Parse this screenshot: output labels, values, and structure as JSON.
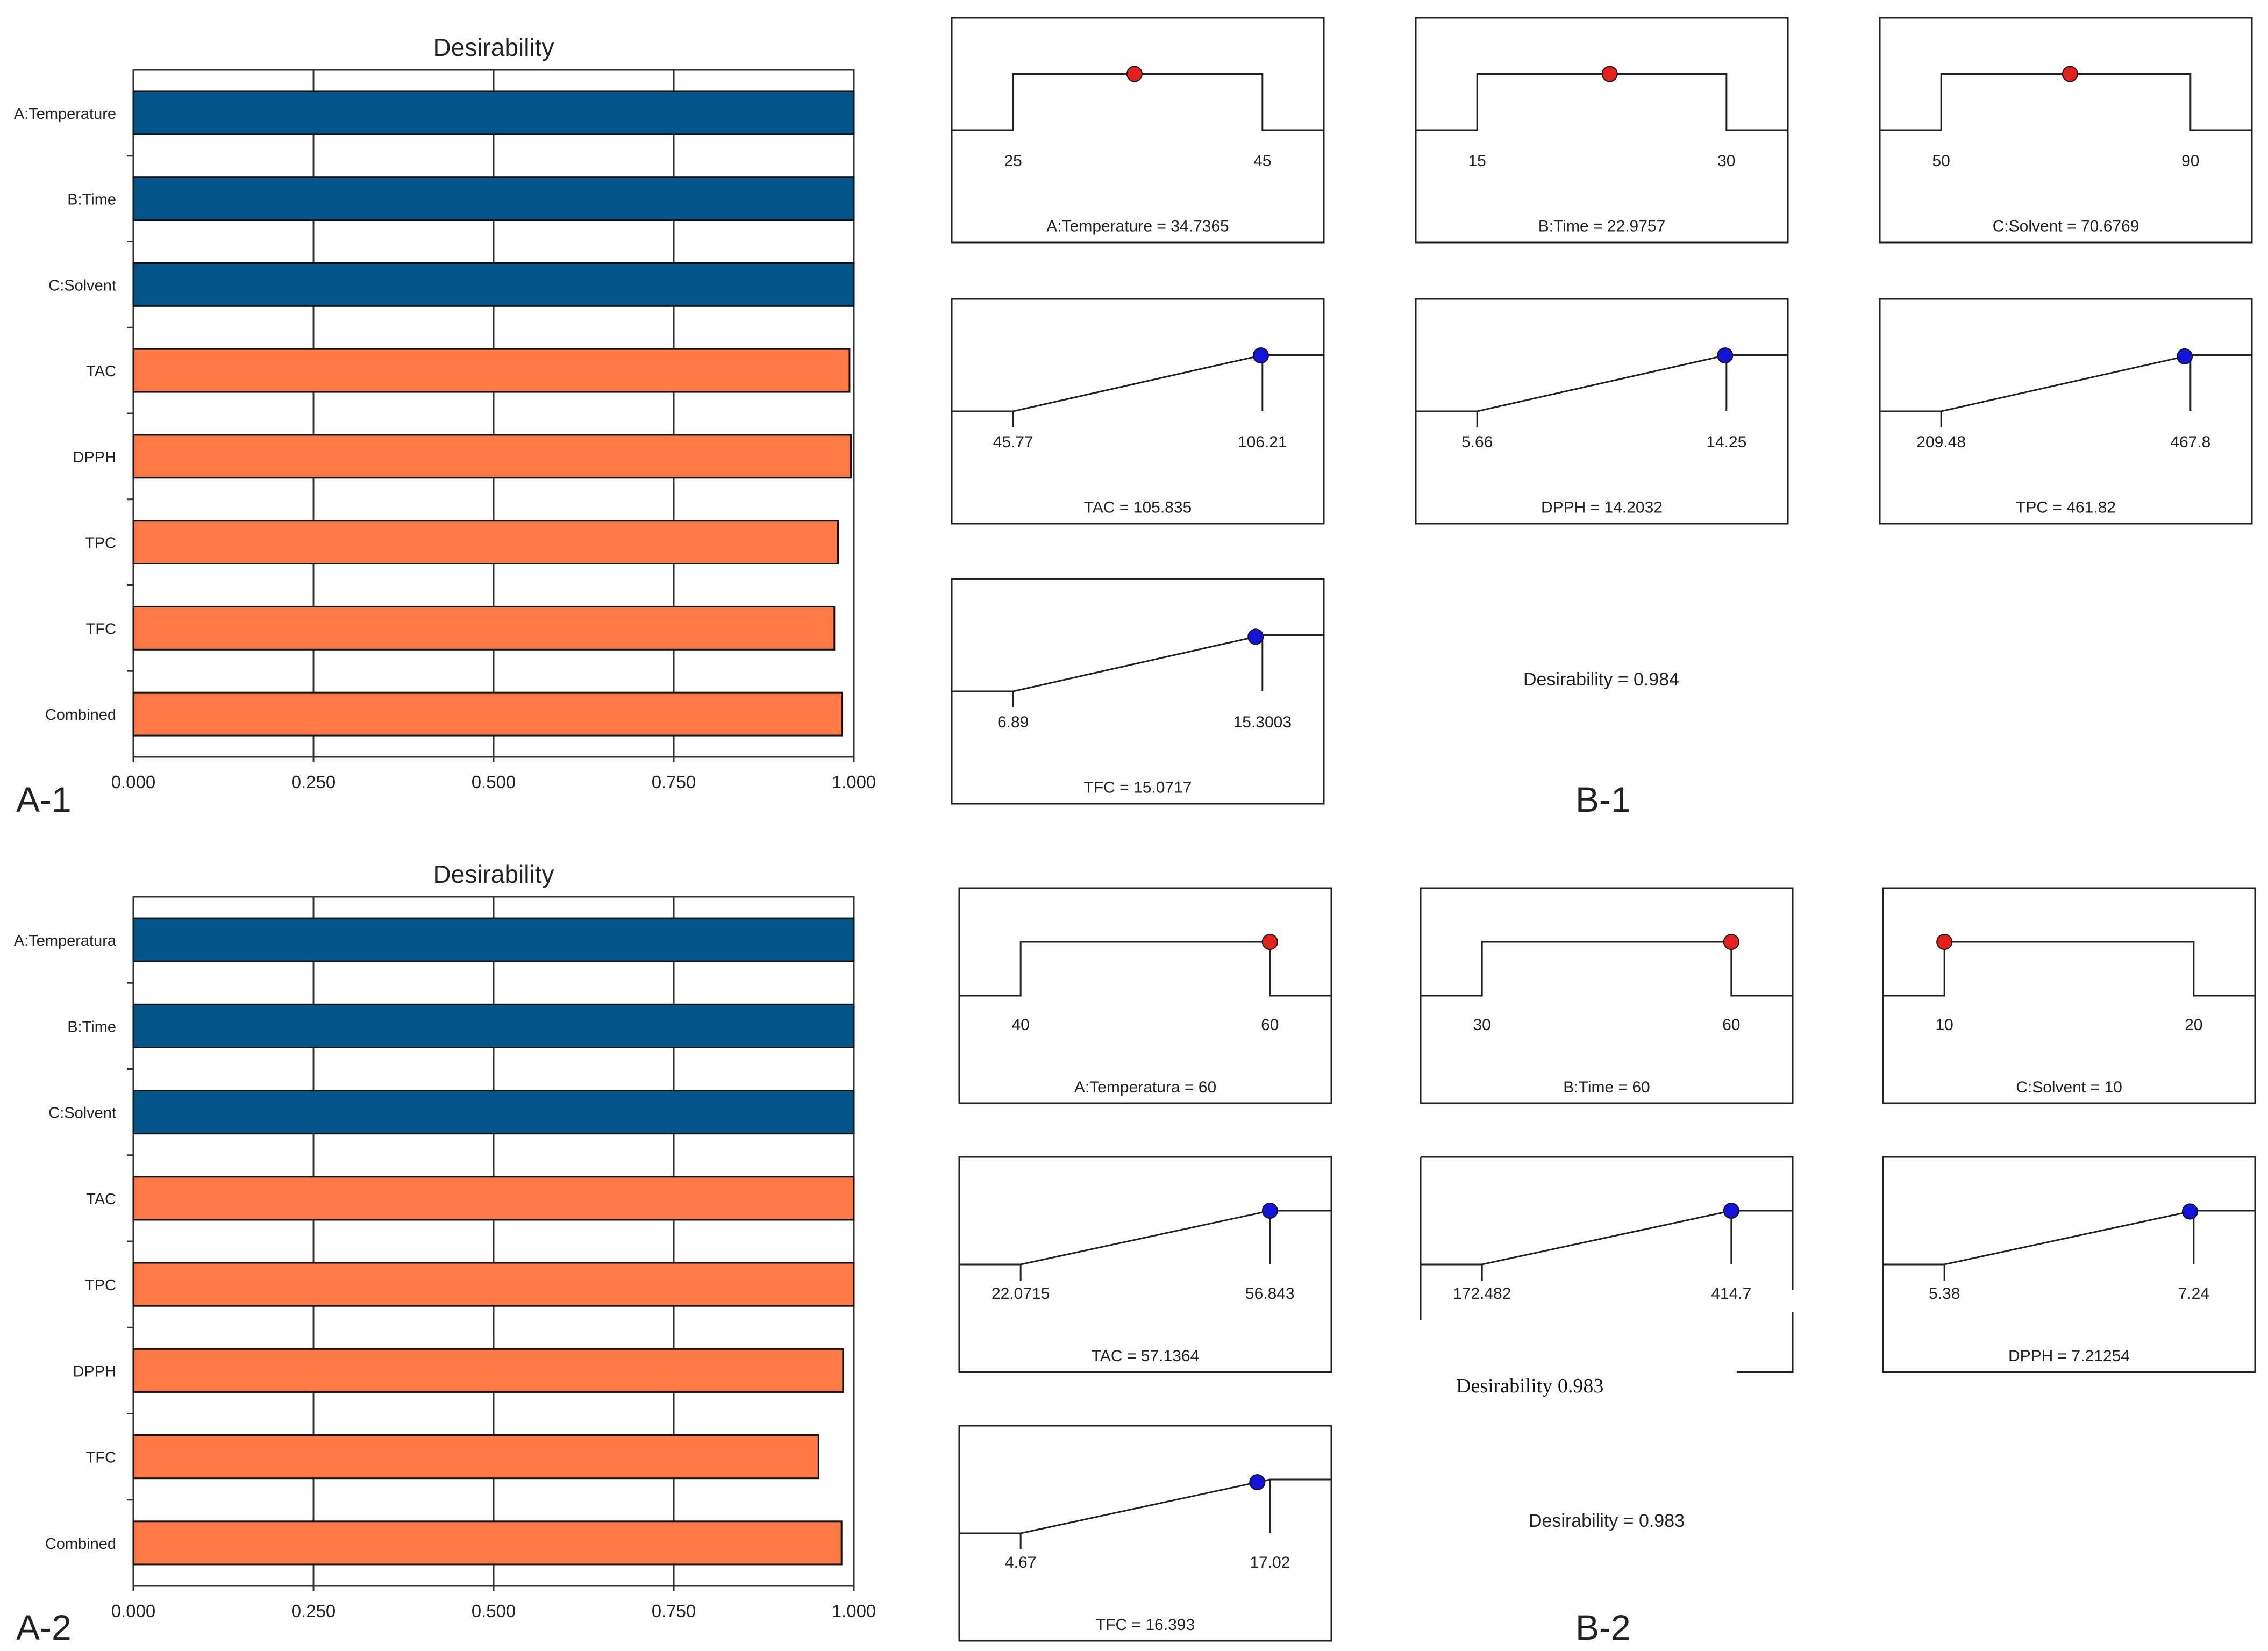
{
  "chart_data": [
    {
      "panel": "A-1",
      "type": "bar",
      "orientation": "horizontal",
      "title": "Desirability",
      "categories": [
        "A:Temperature",
        "B:Time",
        "C:Solvent",
        "TAC",
        "DPPH",
        "TPC",
        "TFC",
        "Combined"
      ],
      "values": [
        1.0,
        1.0,
        1.0,
        0.994,
        0.996,
        0.978,
        0.973,
        0.984
      ],
      "bar_colors": [
        "#03568A",
        "#03568A",
        "#03568A",
        "#FF7A45",
        "#FF7A45",
        "#FF7A45",
        "#FF7A45",
        "#FF7A45"
      ],
      "xlim": [
        0,
        1
      ],
      "xticks": [
        "0.000",
        "0.250",
        "0.500",
        "0.750",
        "1.000"
      ],
      "grid": true
    },
    {
      "panel": "A-2",
      "type": "bar",
      "orientation": "horizontal",
      "title": "Desirability",
      "categories": [
        "A:Temperatura",
        "B:Time",
        "C:Solvent",
        "TAC",
        "TPC",
        "DPPH",
        "TFC",
        "Combined"
      ],
      "values": [
        1.0,
        1.0,
        1.0,
        1.0,
        1.0,
        0.985,
        0.951,
        0.983
      ],
      "bar_colors": [
        "#03568A",
        "#03568A",
        "#03568A",
        "#FF7A45",
        "#FF7A45",
        "#FF7A45",
        "#FF7A45",
        "#FF7A45"
      ],
      "xlim": [
        0,
        1
      ],
      "xticks": [
        "0.000",
        "0.250",
        "0.500",
        "0.750",
        "1.000"
      ],
      "grid": true
    },
    {
      "panel": "B-1",
      "type": "line",
      "subtitle": "Desirability = 0.984",
      "ramps": [
        {
          "kind": "factor",
          "low": 25,
          "high": 45,
          "low_label": "25",
          "high_label": "45",
          "value": 34.7365,
          "label": "A:Temperature = 34.7365"
        },
        {
          "kind": "factor",
          "low": 15,
          "high": 30,
          "low_label": "15",
          "high_label": "30",
          "value": 22.9757,
          "label": "B:Time = 22.9757"
        },
        {
          "kind": "factor",
          "low": 50,
          "high": 90,
          "low_label": "50",
          "high_label": "90",
          "value": 70.6769,
          "label": "C:Solvent = 70.6769"
        },
        {
          "kind": "response",
          "low": 45.77,
          "high": 106.21,
          "low_label": "45.77",
          "high_label": "106.21",
          "value": 105.835,
          "label": "TAC = 105.835"
        },
        {
          "kind": "response",
          "low": 5.66,
          "high": 14.25,
          "low_label": "5.66",
          "high_label": "14.25",
          "value": 14.2032,
          "label": "DPPH = 14.2032"
        },
        {
          "kind": "response",
          "low": 209.48,
          "high": 467.8,
          "low_label": "209.48",
          "high_label": "467.8",
          "value": 461.82,
          "label": "TPC = 461.82"
        },
        {
          "kind": "response",
          "low": 6.89,
          "high": 15.3003,
          "low_label": "6.89",
          "high_label": "15.3003",
          "value": 15.0717,
          "label": "TFC = 15.0717"
        }
      ]
    },
    {
      "panel": "B-2",
      "type": "line",
      "subtitle": "Desirability = 0.983",
      "ramps": [
        {
          "kind": "factor",
          "low": 40,
          "high": 60,
          "low_label": "40",
          "high_label": "60",
          "value": 60,
          "label": "A:Temperatura = 60"
        },
        {
          "kind": "factor",
          "low": 30,
          "high": 60,
          "low_label": "30",
          "high_label": "60",
          "value": 60,
          "label": "B:Time = 60"
        },
        {
          "kind": "factor",
          "low": 10,
          "high": 20,
          "low_label": "10",
          "high_label": "20",
          "value": 10,
          "label": "C:Solvent = 10"
        },
        {
          "kind": "response",
          "low": 22.0715,
          "high": 56.843,
          "low_label": "22.0715",
          "high_label": "56.843",
          "value": 57.1364,
          "label": "TAC = 57.1364"
        },
        {
          "kind": "response",
          "low": 172.482,
          "high": 414.7,
          "low_label": "172.482",
          "high_label": "414.7",
          "value": 414.7,
          "label": ""
        },
        {
          "kind": "response",
          "low": 5.38,
          "high": 7.24,
          "low_label": "5.38",
          "high_label": "7.24",
          "value": 7.21254,
          "label": "DPPH = 7.21254"
        },
        {
          "kind": "response",
          "low": 4.67,
          "high": 17.02,
          "low_label": "4.67",
          "high_label": "17.02",
          "value": 16.393,
          "label": "TFC = 16.393"
        }
      ]
    }
  ],
  "figure": {
    "panel_labels": [
      "A-1",
      "B-1",
      "A-2",
      "B-2"
    ],
    "b2_inline_note": "Desirability 0.983"
  },
  "colors": {
    "factor_bar": "#03568A",
    "response_bar": "#FF7A45",
    "factor_marker": "#E3211C",
    "response_marker": "#1414D9"
  }
}
